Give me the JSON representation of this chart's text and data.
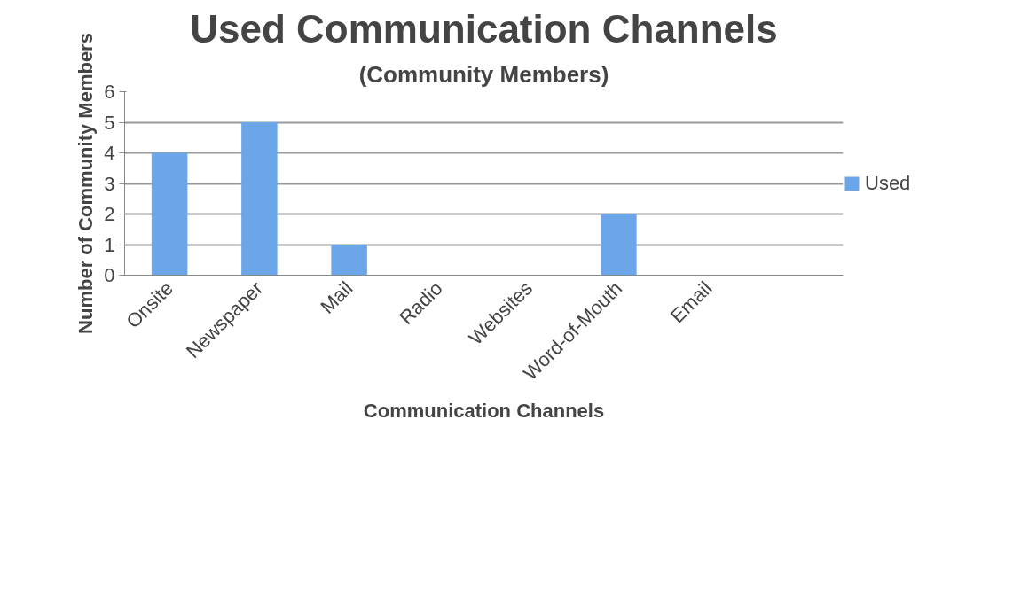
{
  "chart_data": {
    "type": "bar",
    "title": "Used Communication Channels",
    "subtitle": "(Community Members)",
    "xlabel": "Communication Channels",
    "ylabel": "Number of Community Members",
    "categories": [
      "Onsite",
      "Newspaper",
      "Mail",
      "Radio",
      "Websites",
      "Word-of-Mouth",
      "Email",
      null
    ],
    "series": [
      {
        "name": "Used",
        "color": "#6aa6e8",
        "values": [
          4,
          5,
          1,
          0,
          0,
          2,
          0,
          0
        ]
      }
    ],
    "ylim": [
      0,
      6
    ],
    "yticks": [
      0,
      1,
      2,
      3,
      4,
      5,
      6
    ],
    "grid": "y",
    "legend": "right"
  }
}
